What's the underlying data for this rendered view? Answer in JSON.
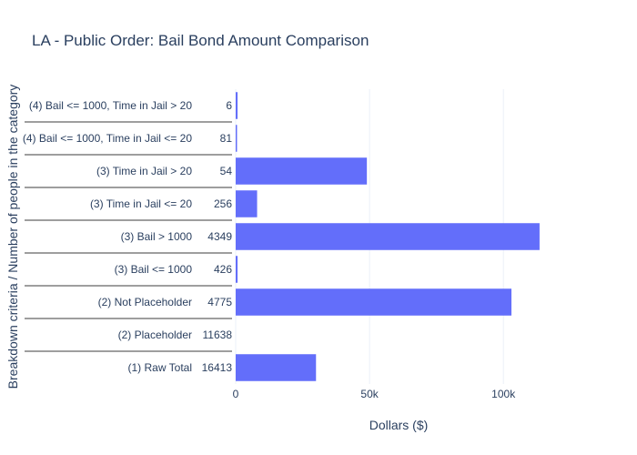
{
  "chart_data": {
    "type": "bar",
    "orientation": "horizontal",
    "title": "LA - Public Order: Bail Bond Amount Comparison",
    "xlabel": "Dollars ($)",
    "ylabel": "Breakdown criteria / Number of people in the category",
    "xlim": [
      0,
      138000
    ],
    "xticks": [
      0,
      50000,
      100000
    ],
    "xtick_labels": [
      "0",
      "50k",
      "100k"
    ],
    "grid": true,
    "bar_color": "#636efa",
    "categories": [
      "(4) Bail <= 1000, Time in Jail > 20",
      "(4) Bail <= 1000, Time in Jail <= 20",
      "(3) Time in Jail > 20",
      "(3) Time in Jail <= 20",
      "(3) Bail > 1000",
      "(3) Bail <= 1000",
      "(2) Not Placeholder",
      "(2) Placeholder",
      "(1) Raw Total"
    ],
    "counts": [
      "6",
      "81",
      "54",
      "256",
      "4349",
      "426",
      "4775",
      "11638",
      "16413"
    ],
    "values": [
      700,
      500,
      49000,
      8000,
      113500,
      700,
      103000,
      0,
      30000
    ]
  }
}
